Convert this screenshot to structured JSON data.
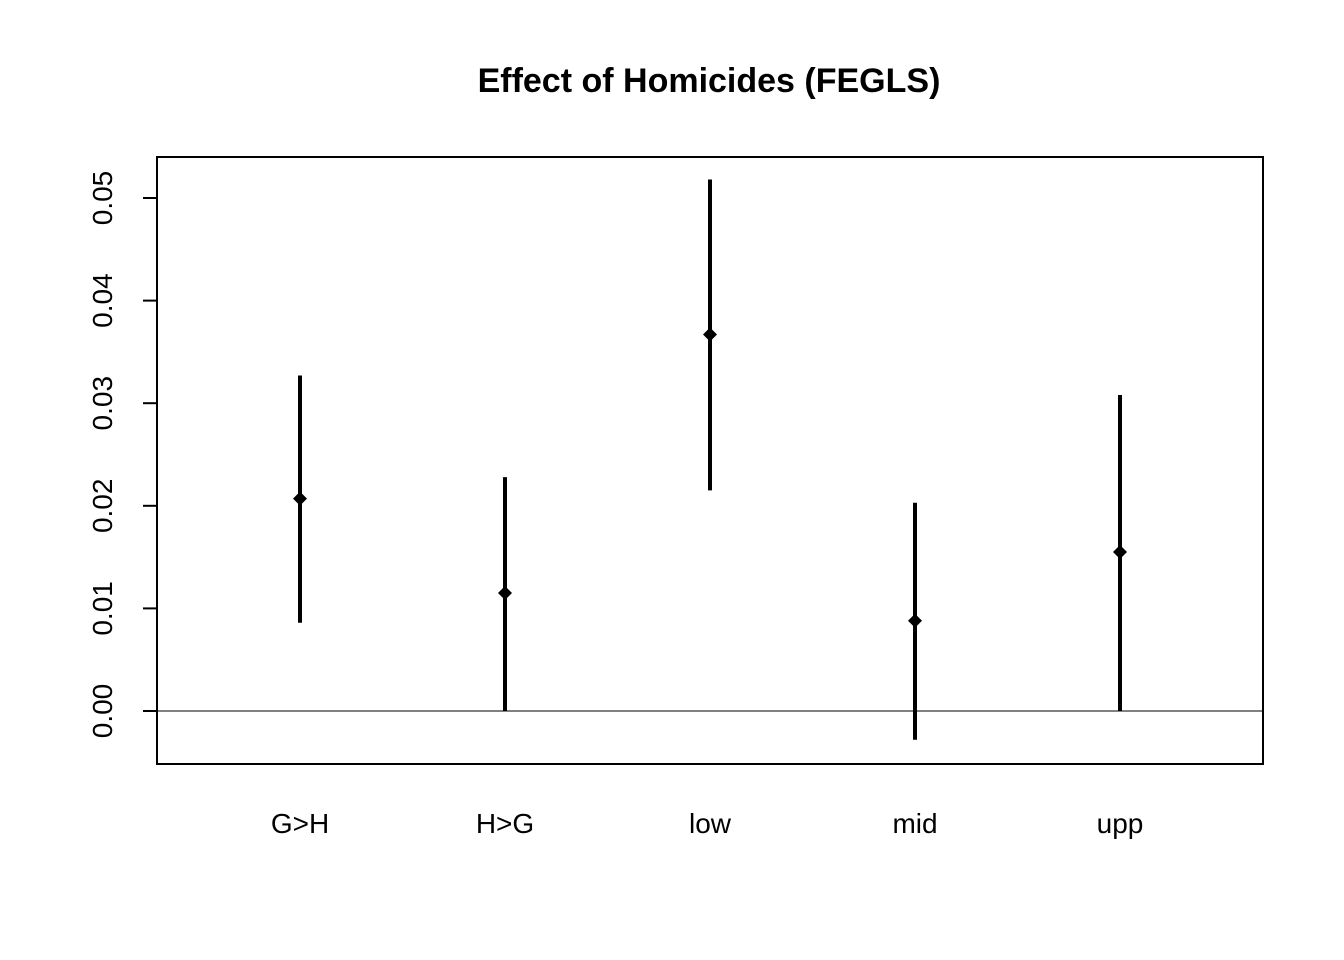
{
  "chart_data": {
    "type": "errorbar",
    "title": "Effect of Homicides (FEGLS)",
    "xlabel": "",
    "ylabel": "",
    "categories": [
      "G>H",
      "H>G",
      "low",
      "mid",
      "upp"
    ],
    "estimates": [
      0.0207,
      0.0115,
      0.0367,
      0.0088,
      0.0155
    ],
    "lower": [
      0.0086,
      0.0,
      0.0215,
      -0.0028,
      0.0
    ],
    "upper": [
      0.0327,
      0.0228,
      0.0518,
      0.0203,
      0.0308
    ],
    "ylim": [
      -0.005,
      0.054
    ],
    "yticks": [
      0.0,
      0.01,
      0.02,
      0.03,
      0.04,
      0.05
    ],
    "ytick_labels": [
      "0.00",
      "0.01",
      "0.02",
      "0.03",
      "0.04",
      "0.05"
    ],
    "reference_line_y": 0.0,
    "grid": false,
    "legend": "none",
    "color": "#000000"
  }
}
